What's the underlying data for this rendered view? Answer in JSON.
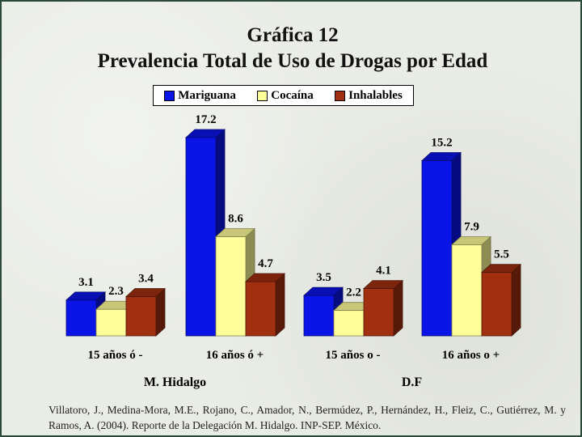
{
  "chart_data": {
    "type": "bar",
    "title": "Gráfica 12",
    "subtitle": "Prevalencia Total de Uso de Drogas por Edad",
    "categories": [
      "15 años ó -",
      "16 años ó +",
      "15 años o -",
      "16 años o +"
    ],
    "groups": [
      {
        "label": "M. Hidalgo",
        "categories": [
          "15 años ó -",
          "16 años ó +"
        ]
      },
      {
        "label": "D.F",
        "categories": [
          "15 años o -",
          "16 años o +"
        ]
      }
    ],
    "series": [
      {
        "name": "Mariguana",
        "color": "#0a14e6",
        "values": [
          3.1,
          17.2,
          3.5,
          15.2
        ]
      },
      {
        "name": "Cocaína",
        "color": "#ffff99",
        "values": [
          2.3,
          8.6,
          2.2,
          7.9
        ]
      },
      {
        "name": "Inhalables",
        "color": "#a0300f",
        "values": [
          3.4,
          4.7,
          4.1,
          5.5
        ]
      }
    ],
    "ylim": [
      0,
      17.2
    ],
    "legend": "top",
    "grid": false
  },
  "citation": "Villatoro, J., Medina-Mora, M.E., Rojano, C., Amador, N., Bermúdez, P., Hernández, H., Fleiz, C., Gutiérrez, M. y Ramos, A. (2004). Reporte de la Delegación M. Hidalgo. INP-SEP. México."
}
